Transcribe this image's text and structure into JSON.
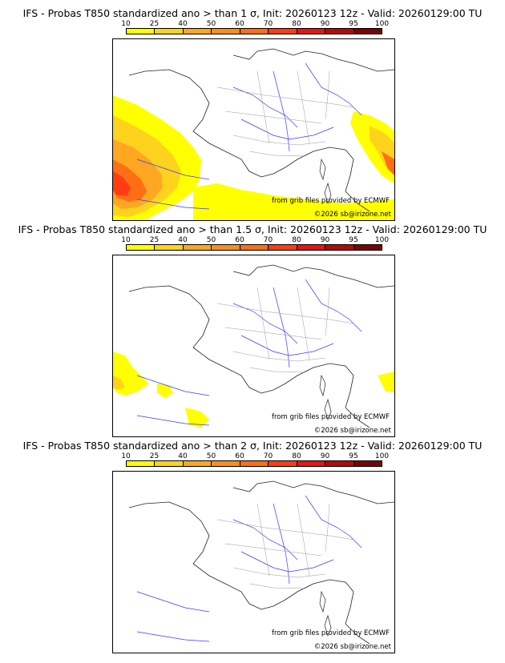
{
  "scale": {
    "labels": [
      "10",
      "25",
      "40",
      "50",
      "60",
      "70",
      "80",
      "90",
      "95",
      "100"
    ],
    "colors": [
      "#ffff00",
      "#ffd21e",
      "#ffa623",
      "#ff8c1e",
      "#ff6e14",
      "#ff3c14",
      "#e61414",
      "#b40a0a",
      "#780505"
    ]
  },
  "credits": {
    "source": "from grib files provided by ECMWF",
    "copyright": "©2026 sb@irizone.net"
  },
  "panels": [
    {
      "title": "IFS - Probas T850  standardized ano > than 1 σ, Init: 20260123 12z - Valid: 20260129:00 TU",
      "threshold_sigma": 1,
      "probability_level": "high"
    },
    {
      "title": "IFS - Probas T850  standardized ano > than 1.5 σ, Init: 20260123 12z - Valid: 20260129:00 TU",
      "threshold_sigma": 1.5,
      "probability_level": "low"
    },
    {
      "title": "IFS - Probas T850  standardized ano > than 2 σ, Init: 20260123 12z - Valid: 20260129:00 TU",
      "threshold_sigma": 2,
      "probability_level": "none"
    }
  ]
}
